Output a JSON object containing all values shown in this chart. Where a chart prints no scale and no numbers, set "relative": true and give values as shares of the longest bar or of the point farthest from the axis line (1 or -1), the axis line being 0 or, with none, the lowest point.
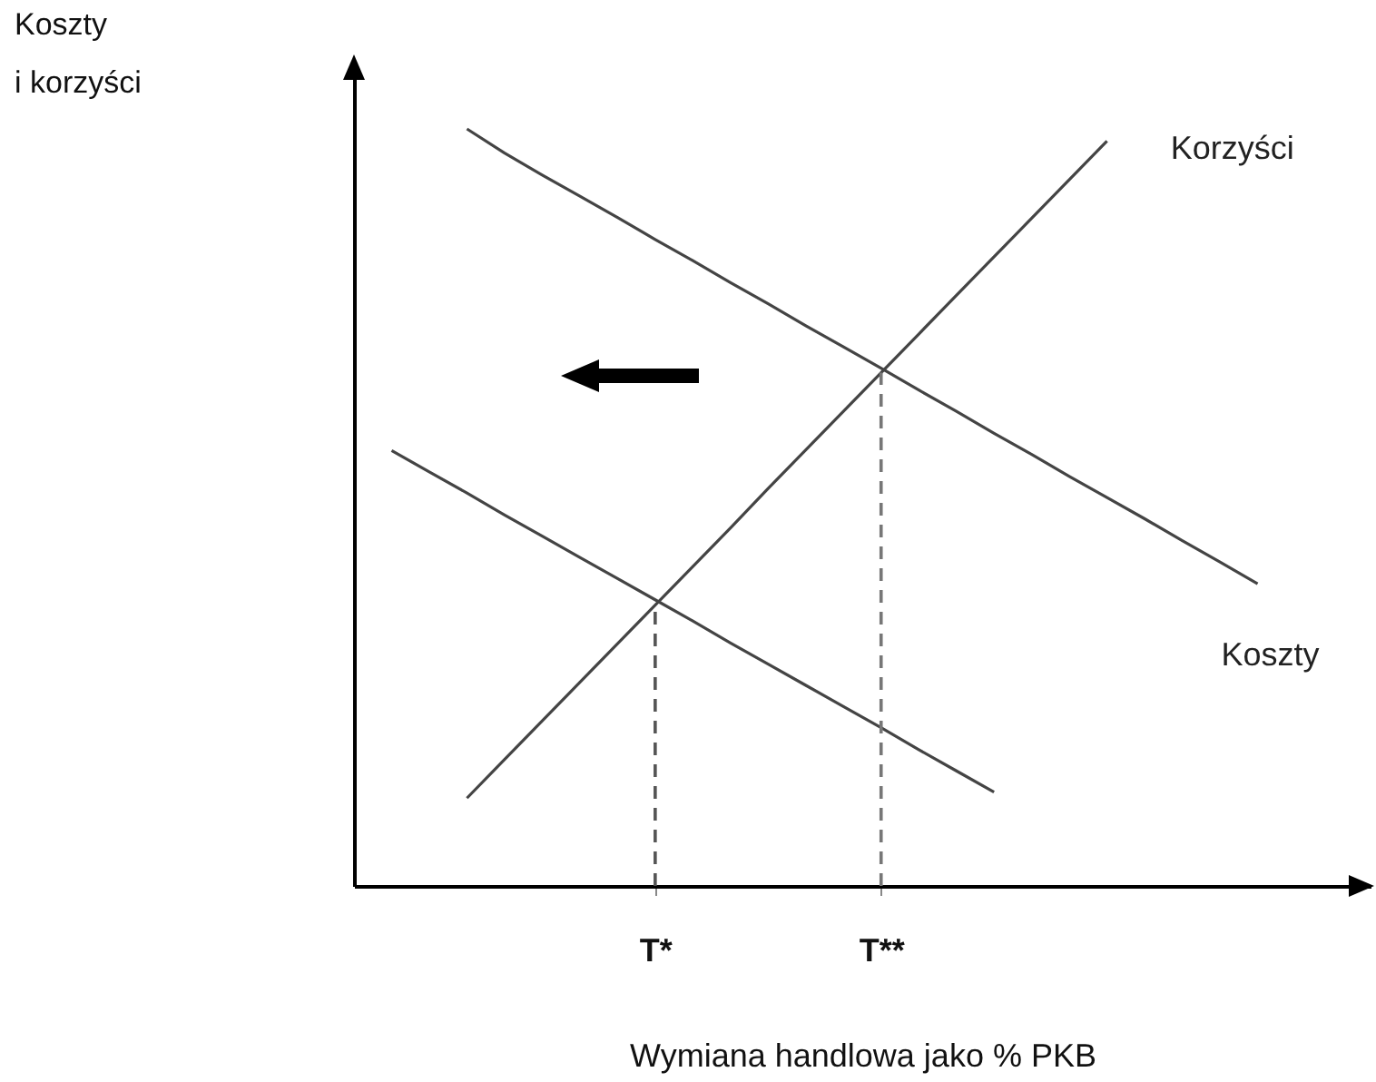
{
  "chart_data": {
    "type": "line",
    "relative": true,
    "xlabel": "Wymiana handlowa jako % PKB",
    "annotations": [
      "Koszty\ni korzyści"
    ],
    "categories": [
      null,
      null,
      null,
      null,
      null,
      null,
      null,
      null,
      "T*",
      null,
      null,
      null,
      null,
      null,
      "T**",
      null,
      null,
      null,
      null,
      null,
      null,
      null,
      null,
      null,
      null,
      null,
      null
    ],
    "grid": false,
    "legend": false,
    "marker": "none",
    "series": [
      {
        "name": "Korzyści",
        "color": "#444444",
        "values": [
          null,
          null,
          null,
          0.116,
          0.167,
          0.218,
          0.269,
          0.32,
          0.371,
          0.422,
          0.473,
          0.525,
          0.576,
          0.627,
          0.678,
          0.729,
          0.78,
          0.831,
          0.882,
          0.933,
          0.984,
          null,
          null,
          null,
          null,
          null,
          null
        ]
      },
      {
        "name": "Koszty",
        "color": "#444444",
        "values": [
          null,
          null,
          null,
          1,
          0.968,
          0.939,
          0.911,
          0.883,
          0.854,
          0.826,
          0.797,
          0.769,
          0.74,
          0.712,
          0.684,
          0.655,
          0.627,
          0.598,
          0.57,
          0.541,
          0.513,
          0.485,
          0.456,
          0.428,
          0.399,
          null,
          null
        ]
      },
      {
        "color": "#444444",
        "values": [
          null,
          0.575,
          0.547,
          0.519,
          0.49,
          0.462,
          0.434,
          0.406,
          0.378,
          0.35,
          0.321,
          0.293,
          0.265,
          0.237,
          0.209,
          0.18,
          0.152,
          0.124,
          null,
          null,
          null,
          null,
          null,
          null,
          null,
          null,
          null
        ]
      }
    ],
    "ref_lines": [
      {
        "axis": "x",
        "value": "T*",
        "color": "#555555",
        "line_style": "dashed"
      },
      {
        "axis": "x",
        "value": "T**",
        "color": "#777777",
        "line_style": "dashed"
      }
    ]
  }
}
